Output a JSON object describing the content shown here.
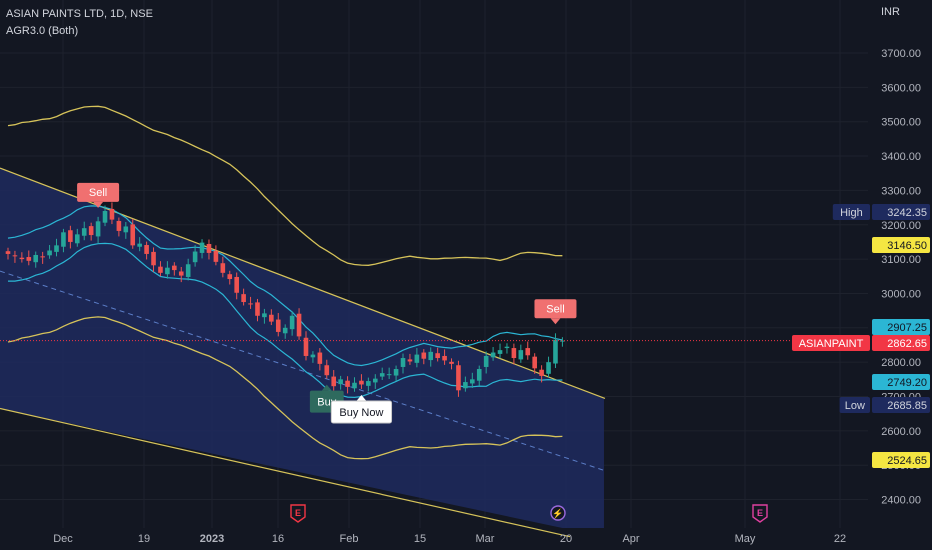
{
  "header": {
    "symbol_title": "ASIAN PAINTS LTD, 1D, NSE",
    "indicator_title": "AGR3.0 (Both)"
  },
  "currency_label": "INR",
  "colors": {
    "background": "#131722",
    "bull": "#26a69a",
    "bear": "#ef5350",
    "channel_line": "#d6c35a",
    "channel_fill": "#1e2a5e",
    "band": "#2bb6d4",
    "sell_label": "#f07070",
    "buy_label": "#2e6a5e",
    "price_line": "#f23645"
  },
  "chart_data": {
    "type": "candlestick",
    "title": "ASIAN PAINTS LTD, 1D, NSE",
    "ylim": [
      2350,
      3780
    ],
    "y_ticks": [
      2400,
      2500,
      2600,
      2700,
      2800,
      2900,
      3000,
      3100,
      3200,
      3300,
      3400,
      3500,
      3600,
      3700
    ],
    "y_tick_labels": [
      "2400.00",
      "2500.00",
      "2600.00",
      "2700.00",
      "2800.00",
      "2900.00",
      "3000.00",
      "3100.00",
      "3200.00",
      "3300.00",
      "3400.00",
      "3500.00",
      "3600.00",
      "3700.00"
    ],
    "x_labels": [
      "Dec",
      "19",
      "2023",
      "16",
      "Feb",
      "15",
      "Mar",
      "20",
      "Apr",
      "May",
      "22"
    ],
    "grid": true,
    "closes": [
      3115,
      3108,
      3100,
      3095,
      3112,
      3105,
      3125,
      3140,
      3178,
      3150,
      3172,
      3190,
      3170,
      3210,
      3240,
      3215,
      3182,
      3195,
      3140,
      3145,
      3115,
      3082,
      3060,
      3075,
      3068,
      3052,
      3085,
      3122,
      3148,
      3118,
      3092,
      3060,
      3042,
      3002,
      2975,
      2968,
      2935,
      2942,
      2918,
      2888,
      2900,
      2935,
      2875,
      2818,
      2822,
      2795,
      2762,
      2730,
      2750,
      2728,
      2740,
      2735,
      2745,
      2752,
      2768,
      2765,
      2780,
      2812,
      2802,
      2822,
      2810,
      2830,
      2812,
      2805,
      2795,
      2718,
      2742,
      2750,
      2780,
      2818,
      2828,
      2835,
      2845,
      2812,
      2835,
      2820,
      2782,
      2760,
      2800,
      2865,
      2862.65
    ],
    "overlays": [
      {
        "name": "channel-upper",
        "points": [
          [
            -1,
            3365
          ],
          [
            81.5,
            2730
          ]
        ]
      },
      {
        "name": "channel-mid",
        "points": [
          [
            -1,
            3065
          ],
          [
            81.5,
            2515
          ]
        ]
      },
      {
        "name": "channel-lower",
        "points": [
          [
            -1,
            2665
          ],
          [
            81.5,
            2290
          ]
        ]
      }
    ],
    "markers": [
      {
        "type": "sell",
        "label": "Sell",
        "index": 13
      },
      {
        "type": "sell",
        "label": "Sell",
        "index": 79
      },
      {
        "type": "buy",
        "label": "Buy",
        "index": 46
      },
      {
        "type": "buy",
        "label": "Buy Now",
        "index": 51
      }
    ],
    "event_icons": [
      {
        "icon": "earnings-icon",
        "label": "E",
        "index": 41
      },
      {
        "icon": "earnings-icon",
        "label": "E",
        "index": 108
      },
      {
        "icon": "split-icon",
        "label": "⚡",
        "index": 78
      }
    ]
  },
  "axis_badges": [
    {
      "name": "high-label",
      "label": "High",
      "value": "3242.35"
    },
    {
      "name": "ma-upper-value",
      "label": "",
      "value": "3146.50"
    },
    {
      "name": "band-upper-value",
      "label": "",
      "value": "2907.25"
    },
    {
      "name": "last-price",
      "label": "ASIANPAINT",
      "value": "2862.65"
    },
    {
      "name": "band-lower-value",
      "label": "",
      "value": "2749.20"
    },
    {
      "name": "low-label",
      "label": "Low",
      "value": "2685.85"
    },
    {
      "name": "ma-lower-value",
      "label": "",
      "value": "2524.65"
    }
  ]
}
